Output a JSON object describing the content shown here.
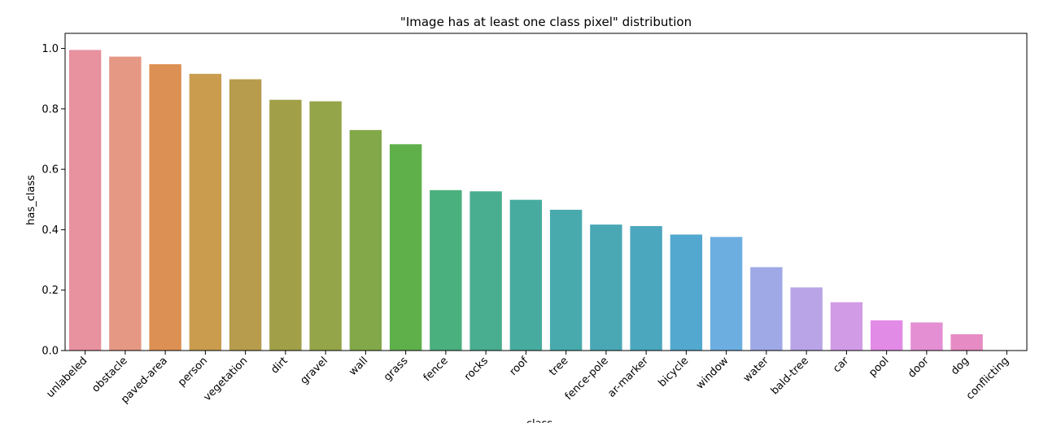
{
  "chart_data": {
    "type": "bar",
    "title": "\"Image has at least one class pixel\" distribution",
    "xlabel": "class",
    "ylabel": "has_class",
    "ylim": [
      0,
      1.05
    ],
    "yticks": [
      "0.0",
      "0.2",
      "0.4",
      "0.6",
      "0.8",
      "1.0"
    ],
    "ytick_values": [
      0,
      0.2,
      0.4,
      0.6,
      0.8,
      1.0
    ],
    "grid": false,
    "categories": [
      "unlabeled",
      "obstacle",
      "paved-area",
      "person",
      "vegetation",
      "dirt",
      "gravel",
      "wall",
      "grass",
      "fence",
      "rocks",
      "roof",
      "tree",
      "fence-pole",
      "ar-marker",
      "bicycle",
      "window",
      "water",
      "bald-tree",
      "car",
      "pool",
      "door",
      "dog",
      "conflicting"
    ],
    "values": [
      0.995,
      0.973,
      0.948,
      0.916,
      0.898,
      0.83,
      0.825,
      0.73,
      0.683,
      0.531,
      0.527,
      0.499,
      0.466,
      0.417,
      0.412,
      0.384,
      0.376,
      0.276,
      0.209,
      0.16,
      0.1,
      0.093,
      0.054,
      0.0
    ],
    "colors": [
      "#e8919f",
      "#e59884",
      "#dd9053",
      "#c99c4e",
      "#b69c4c",
      "#a19f48",
      "#94a449",
      "#83a84a",
      "#5fb04b",
      "#4ab07d",
      "#49ad8f",
      "#48ab9f",
      "#49aaad",
      "#4aa8b5",
      "#4ba7be",
      "#52a8cf",
      "#6caee0",
      "#9ea9e6",
      "#b8a4e6",
      "#d19be6",
      "#e28be6",
      "#e48fd3",
      "#e68bc3",
      "#e78ab5"
    ]
  }
}
